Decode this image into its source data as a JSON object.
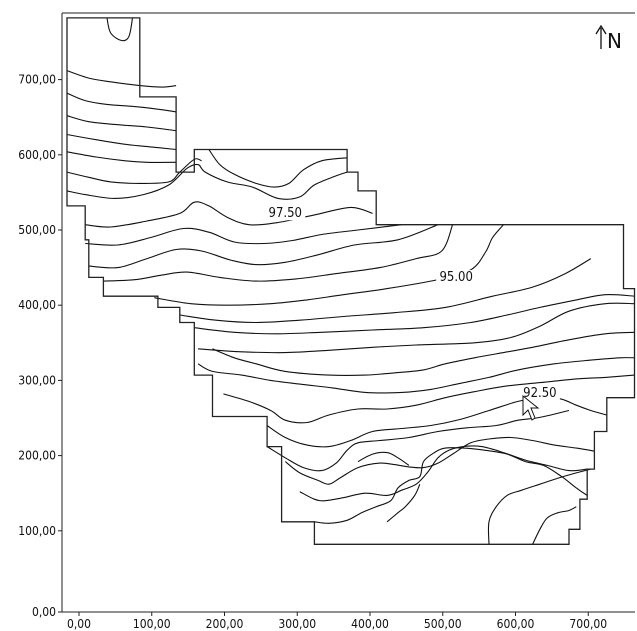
{
  "chart_data": {
    "type": "contour",
    "xlim": [
      0,
      780
    ],
    "ylim": [
      0,
      790
    ],
    "x_ticks": [
      "0,00",
      "100,00",
      "200,00",
      "300,00",
      "400,00",
      "500,00",
      "600,00",
      "700,00"
    ],
    "y_ticks": [
      "0,00",
      "100,00",
      "200,00",
      "300,00",
      "400,00",
      "500,00",
      "600,00",
      "700,00"
    ],
    "x_tick_values": [
      0,
      100,
      200,
      300,
      400,
      500,
      600,
      700
    ],
    "y_tick_values": [
      0,
      100,
      200,
      300,
      400,
      500,
      600,
      700
    ],
    "north_label": "N",
    "contour_labels": [
      {
        "text": "97.50",
        "x": 300,
        "y": 525
      },
      {
        "text": "95.00",
        "x": 535,
        "y": 440
      },
      {
        "text": "92.50",
        "x": 650,
        "y": 286
      }
    ],
    "boundary": [
      [
        0,
        790
      ],
      [
        100,
        790
      ],
      [
        100,
        685
      ],
      [
        150,
        685
      ],
      [
        150,
        585
      ],
      [
        175,
        585
      ],
      [
        175,
        615
      ],
      [
        385,
        615
      ],
      [
        385,
        585
      ],
      [
        400,
        585
      ],
      [
        400,
        560
      ],
      [
        425,
        560
      ],
      [
        425,
        515
      ],
      [
        765,
        515
      ],
      [
        765,
        430
      ],
      [
        780,
        430
      ],
      [
        780,
        285
      ],
      [
        742,
        285
      ],
      [
        742,
        240
      ],
      [
        725,
        240
      ],
      [
        725,
        190
      ],
      [
        715,
        190
      ],
      [
        715,
        150
      ],
      [
        705,
        150
      ],
      [
        705,
        110
      ],
      [
        690,
        110
      ],
      [
        690,
        90
      ],
      [
        340,
        90
      ],
      [
        340,
        120
      ],
      [
        295,
        120
      ],
      [
        295,
        220
      ],
      [
        275,
        220
      ],
      [
        275,
        260
      ],
      [
        200,
        260
      ],
      [
        200,
        315
      ],
      [
        175,
        315
      ],
      [
        175,
        385
      ],
      [
        155,
        385
      ],
      [
        155,
        405
      ],
      [
        125,
        405
      ],
      [
        125,
        420
      ],
      [
        50,
        420
      ],
      [
        50,
        445
      ],
      [
        30,
        445
      ],
      [
        30,
        495
      ],
      [
        25,
        495
      ],
      [
        25,
        540
      ],
      [
        0,
        540
      ],
      [
        0,
        790
      ]
    ],
    "contours": [
      [
        [
          55,
          790
        ],
        [
          60,
          770
        ],
        [
          75,
          760
        ],
        [
          85,
          765
        ],
        [
          90,
          790
        ]
      ],
      [
        [
          0,
          720
        ],
        [
          30,
          710
        ],
        [
          60,
          705
        ],
        [
          100,
          700
        ],
        [
          130,
          698
        ],
        [
          150,
          700
        ]
      ],
      [
        [
          0,
          690
        ],
        [
          25,
          680
        ],
        [
          55,
          675
        ],
        [
          95,
          672
        ],
        [
          130,
          668
        ],
        [
          150,
          665
        ]
      ],
      [
        [
          0,
          660
        ],
        [
          30,
          652
        ],
        [
          70,
          648
        ],
        [
          110,
          645
        ],
        [
          150,
          640
        ]
      ],
      [
        [
          0,
          635
        ],
        [
          40,
          628
        ],
        [
          80,
          622
        ],
        [
          120,
          618
        ],
        [
          150,
          615
        ]
      ],
      [
        [
          0,
          612
        ],
        [
          40,
          605
        ],
        [
          80,
          600
        ],
        [
          110,
          598
        ],
        [
          150,
          598
        ]
      ],
      [
        [
          0,
          585
        ],
        [
          30,
          578
        ],
        [
          60,
          572
        ],
        [
          100,
          570
        ],
        [
          140,
          572
        ],
        [
          155,
          585
        ],
        [
          175,
          602
        ],
        [
          185,
          600
        ]
      ],
      [
        [
          0,
          560
        ],
        [
          25,
          555
        ],
        [
          65,
          550
        ],
        [
          105,
          555
        ],
        [
          140,
          568
        ],
        [
          165,
          590
        ],
        [
          180,
          595
        ],
        [
          190,
          585
        ],
        [
          220,
          572
        ],
        [
          255,
          565
        ],
        [
          290,
          550
        ],
        [
          320,
          552
        ],
        [
          340,
          568
        ],
        [
          370,
          580
        ],
        [
          385,
          585
        ]
      ],
      [
        [
          195,
          615
        ],
        [
          210,
          595
        ],
        [
          230,
          582
        ],
        [
          260,
          570
        ],
        [
          285,
          565
        ],
        [
          305,
          570
        ],
        [
          325,
          588
        ],
        [
          350,
          600
        ],
        [
          385,
          604
        ]
      ],
      [
        [
          25,
          515
        ],
        [
          60,
          512
        ],
        [
          110,
          520
        ],
        [
          155,
          530
        ],
        [
          175,
          545
        ],
        [
          195,
          540
        ],
        [
          220,
          525
        ],
        [
          250,
          515
        ],
        [
          290,
          518
        ],
        [
          340,
          528
        ],
        [
          390,
          538
        ],
        [
          420,
          530
        ]
      ],
      [
        [
          25,
          490
        ],
        [
          70,
          488
        ],
        [
          115,
          498
        ],
        [
          160,
          510
        ],
        [
          195,
          505
        ],
        [
          230,
          492
        ],
        [
          270,
          490
        ],
        [
          310,
          494
        ],
        [
          350,
          502
        ],
        [
          400,
          508
        ],
        [
          460,
          515
        ]
      ],
      [
        [
          30,
          460
        ],
        [
          70,
          458
        ],
        [
          110,
          470
        ],
        [
          150,
          482
        ],
        [
          185,
          480
        ],
        [
          225,
          468
        ],
        [
          260,
          462
        ],
        [
          300,
          465
        ],
        [
          345,
          475
        ],
        [
          395,
          488
        ],
        [
          455,
          495
        ],
        [
          510,
          515
        ]
      ],
      [
        [
          50,
          440
        ],
        [
          95,
          442
        ],
        [
          130,
          448
        ],
        [
          165,
          452
        ],
        [
          210,
          445
        ],
        [
          260,
          440
        ],
        [
          315,
          443
        ],
        [
          370,
          450
        ],
        [
          430,
          458
        ],
        [
          480,
          470
        ],
        [
          515,
          480
        ],
        [
          530,
          515
        ]
      ],
      [
        [
          120,
          418
        ],
        [
          170,
          410
        ],
        [
          220,
          408
        ],
        [
          280,
          410
        ],
        [
          330,
          415
        ],
        [
          380,
          422
        ],
        [
          440,
          430
        ],
        [
          510,
          442
        ],
        [
          555,
          455
        ],
        [
          575,
          478
        ],
        [
          585,
          498
        ],
        [
          600,
          515
        ]
      ],
      [
        [
          155,
          395
        ],
        [
          205,
          388
        ],
        [
          260,
          385
        ],
        [
          320,
          388
        ],
        [
          380,
          393
        ],
        [
          450,
          398
        ],
        [
          520,
          405
        ],
        [
          585,
          420
        ],
        [
          640,
          432
        ],
        [
          685,
          450
        ],
        [
          720,
          470
        ]
      ],
      [
        [
          175,
          378
        ],
        [
          230,
          372
        ],
        [
          290,
          370
        ],
        [
          350,
          372
        ],
        [
          420,
          375
        ],
        [
          490,
          378
        ],
        [
          555,
          385
        ],
        [
          605,
          395
        ],
        [
          650,
          405
        ],
        [
          700,
          415
        ],
        [
          740,
          422
        ],
        [
          780,
          420
        ]
      ],
      [
        [
          180,
          350
        ],
        [
          240,
          346
        ],
        [
          300,
          345
        ],
        [
          360,
          348
        ],
        [
          420,
          352
        ],
        [
          480,
          355
        ],
        [
          560,
          358
        ],
        [
          610,
          365
        ],
        [
          650,
          380
        ],
        [
          690,
          400
        ],
        [
          740,
          410
        ],
        [
          780,
          410
        ]
      ],
      [
        [
          200,
          350
        ],
        [
          230,
          338
        ],
        [
          260,
          330
        ],
        [
          300,
          320
        ],
        [
          360,
          315
        ],
        [
          410,
          315
        ],
        [
          450,
          318
        ],
        [
          490,
          322
        ],
        [
          520,
          330
        ],
        [
          560,
          338
        ],
        [
          600,
          345
        ],
        [
          640,
          352
        ],
        [
          690,
          362
        ],
        [
          740,
          370
        ],
        [
          780,
          372
        ]
      ],
      [
        [
          180,
          330
        ],
        [
          200,
          320
        ],
        [
          240,
          315
        ],
        [
          280,
          308
        ],
        [
          320,
          303
        ],
        [
          365,
          298
        ],
        [
          410,
          292
        ],
        [
          460,
          292
        ],
        [
          500,
          296
        ],
        [
          540,
          304
        ],
        [
          580,
          312
        ],
        [
          620,
          322
        ],
        [
          670,
          330
        ],
        [
          720,
          335
        ],
        [
          760,
          338
        ],
        [
          780,
          338
        ]
      ],
      [
        [
          215,
          290
        ],
        [
          250,
          280
        ],
        [
          280,
          268
        ],
        [
          300,
          255
        ],
        [
          330,
          252
        ],
        [
          360,
          262
        ],
        [
          400,
          270
        ],
        [
          440,
          270
        ],
        [
          480,
          275
        ],
        [
          520,
          285
        ],
        [
          560,
          293
        ],
        [
          600,
          300
        ],
        [
          650,
          305
        ],
        [
          700,
          310
        ],
        [
          740,
          312
        ],
        [
          780,
          315
        ]
      ],
      [
        [
          275,
          248
        ],
        [
          300,
          232
        ],
        [
          330,
          222
        ],
        [
          360,
          220
        ],
        [
          390,
          228
        ],
        [
          420,
          240
        ],
        [
          460,
          244
        ],
        [
          500,
          248
        ],
        [
          540,
          256
        ],
        [
          580,
          268
        ],
        [
          620,
          280
        ],
        [
          655,
          286
        ],
        [
          680,
          283
        ],
        [
          700,
          275
        ],
        [
          720,
          268
        ],
        [
          742,
          262
        ]
      ],
      [
        [
          275,
          220
        ],
        [
          300,
          205
        ],
        [
          325,
          192
        ],
        [
          350,
          188
        ],
        [
          370,
          198
        ],
        [
          385,
          215
        ],
        [
          400,
          225
        ],
        [
          430,
          228
        ],
        [
          470,
          232
        ],
        [
          510,
          240
        ],
        [
          550,
          245
        ],
        [
          590,
          248
        ],
        [
          620,
          255
        ],
        [
          645,
          258
        ],
        [
          665,
          262
        ],
        [
          690,
          268
        ]
      ],
      [
        [
          300,
          200
        ],
        [
          320,
          185
        ],
        [
          345,
          175
        ],
        [
          360,
          170
        ],
        [
          375,
          178
        ],
        [
          400,
          192
        ],
        [
          430,
          198
        ],
        [
          450,
          196
        ],
        [
          470,
          193
        ],
        [
          490,
          192
        ],
        [
          510,
          198
        ],
        [
          530,
          210
        ],
        [
          555,
          225
        ],
        [
          580,
          230
        ],
        [
          610,
          232
        ],
        [
          640,
          228
        ],
        [
          670,
          222
        ],
        [
          700,
          218
        ],
        [
          725,
          214
        ]
      ],
      [
        [
          320,
          160
        ],
        [
          340,
          150
        ],
        [
          355,
          148
        ],
        [
          380,
          152
        ],
        [
          410,
          158
        ],
        [
          440,
          155
        ],
        [
          460,
          162
        ],
        [
          480,
          170
        ],
        [
          495,
          185
        ],
        [
          510,
          205
        ],
        [
          525,
          215
        ],
        [
          545,
          220
        ],
        [
          570,
          220
        ],
        [
          600,
          212
        ],
        [
          630,
          202
        ],
        [
          660,
          195
        ],
        [
          690,
          188
        ],
        [
          715,
          190
        ]
      ],
      [
        [
          340,
          120
        ],
        [
          360,
          118
        ],
        [
          385,
          122
        ],
        [
          405,
          132
        ],
        [
          425,
          140
        ],
        [
          445,
          148
        ],
        [
          455,
          165
        ],
        [
          470,
          175
        ],
        [
          485,
          180
        ],
        [
          490,
          200
        ],
        [
          505,
          212
        ],
        [
          520,
          218
        ],
        [
          545,
          218
        ],
        [
          575,
          215
        ],
        [
          605,
          210
        ],
        [
          630,
          200
        ],
        [
          655,
          195
        ],
        [
          680,
          180
        ],
        [
          700,
          165
        ],
        [
          715,
          155
        ]
      ],
      [
        [
          440,
          120
        ],
        [
          455,
          132
        ],
        [
          465,
          140
        ],
        [
          478,
          155
        ],
        [
          485,
          170
        ]
      ],
      [
        [
          580,
          90
        ],
        [
          580,
          120
        ],
        [
          590,
          140
        ],
        [
          605,
          155
        ],
        [
          625,
          162
        ],
        [
          650,
          170
        ],
        [
          675,
          178
        ],
        [
          700,
          185
        ],
        [
          720,
          190
        ]
      ],
      [
        [
          640,
          90
        ],
        [
          650,
          110
        ],
        [
          660,
          125
        ],
        [
          675,
          132
        ],
        [
          690,
          135
        ],
        [
          700,
          140
        ]
      ],
      [
        [
          400,
          200
        ],
        [
          420,
          210
        ],
        [
          440,
          212
        ],
        [
          455,
          205
        ],
        [
          470,
          195
        ]
      ]
    ]
  }
}
